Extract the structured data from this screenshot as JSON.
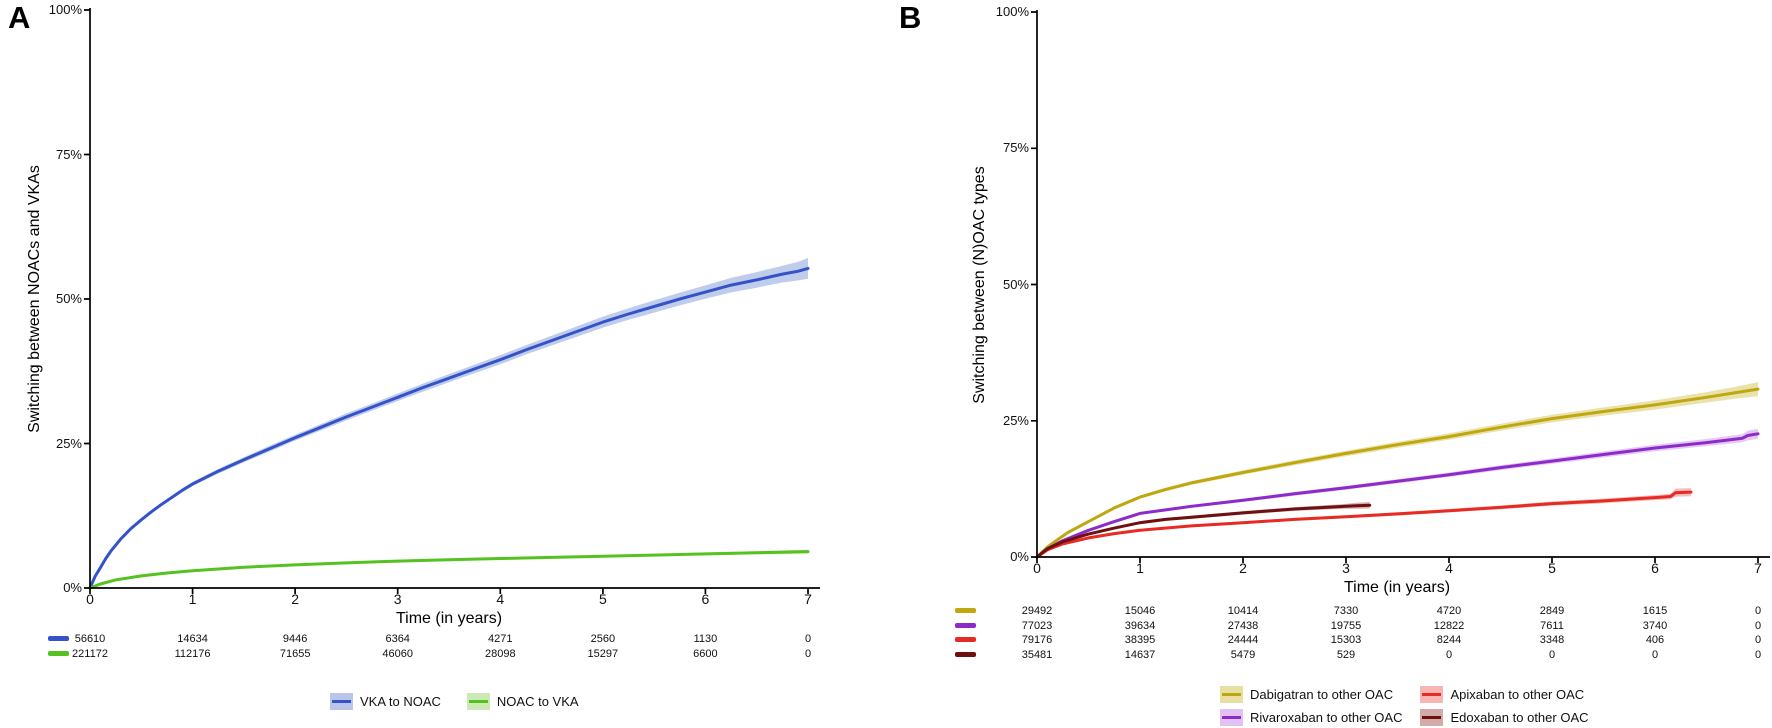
{
  "figure": {
    "background": "#ffffff",
    "axis_color": "#000000"
  },
  "panels": [
    {
      "label": "A",
      "y_axis_title": "Switching between NOACs and VKAs",
      "x_axis_title": "Time (in years)",
      "y_tick_labels": [
        "0%",
        "25%",
        "50%",
        "75%",
        "100%"
      ],
      "x_tick_labels": [
        "0",
        "1",
        "2",
        "3",
        "4",
        "5",
        "6",
        "7"
      ],
      "legend": [
        {
          "label": "VKA to NOAC",
          "line_color": "#3453c8",
          "fill_color": "#b9c6ea"
        },
        {
          "label": "NOAC to VKA",
          "line_color": "#55c221",
          "fill_color": "#cde9b5"
        }
      ],
      "risk_table": [
        {
          "series": "VKA to NOAC",
          "color": "#3453c8",
          "counts": [
            "56610",
            "14634",
            "9446",
            "6364",
            "4271",
            "2560",
            "1130",
            "0"
          ]
        },
        {
          "series": "NOAC to VKA",
          "color": "#55c221",
          "counts": [
            "221172",
            "112176",
            "71655",
            "46060",
            "28098",
            "15297",
            "6600",
            "0"
          ]
        }
      ]
    },
    {
      "label": "B",
      "y_axis_title": "Switching between (N)OAC types",
      "x_axis_title": "Time (in years)",
      "y_tick_labels": [
        "0%",
        "25%",
        "50%",
        "75%",
        "100%"
      ],
      "x_tick_labels": [
        "0",
        "1",
        "2",
        "3",
        "4",
        "5",
        "6",
        "7"
      ],
      "legend": [
        {
          "label": "Dabigatran to other OAC",
          "line_color": "#bfa70f",
          "fill_color": "#e8dfa2"
        },
        {
          "label": "Rivaroxaban to other OAC",
          "line_color": "#8d2bc9",
          "fill_color": "#e2c2f2"
        },
        {
          "label": "Apixaban to other OAC",
          "line_color": "#e62a24",
          "fill_color": "#f6b6b3"
        },
        {
          "label": "Edoxaban to other OAC",
          "line_color": "#6e1012",
          "fill_color": "#d2aaa8"
        }
      ],
      "risk_table": [
        {
          "series": "Dabigatran to other OAC",
          "color": "#bfa70f",
          "counts": [
            "29492",
            "15046",
            "10414",
            "7330",
            "4720",
            "2849",
            "1615",
            "0"
          ]
        },
        {
          "series": "Rivaroxaban to other OAC",
          "color": "#8d2bc9",
          "counts": [
            "77023",
            "39634",
            "27438",
            "19755",
            "12822",
            "7611",
            "3740",
            "0"
          ]
        },
        {
          "series": "Apixaban to other OAC",
          "color": "#e62a24",
          "counts": [
            "79176",
            "38395",
            "24444",
            "15303",
            "8244",
            "3348",
            "406",
            "0"
          ]
        },
        {
          "series": "Edoxaban to other OAC",
          "color": "#6e1012",
          "counts": [
            "35481",
            "14637",
            "5479",
            "529",
            "0",
            "0",
            "0",
            "0"
          ]
        }
      ]
    }
  ],
  "chart_data": [
    {
      "type": "line",
      "title": "Panel A: switching between NOACs and VKAs, cumulative incidence with 95% CI bands",
      "xlabel": "Time (in years)",
      "ylabel": "Switching between NOACs and VKAs",
      "xlim": [
        0,
        7
      ],
      "ylim_pct": [
        0,
        100
      ],
      "x_ticks": [
        0,
        1,
        2,
        3,
        4,
        5,
        6,
        7
      ],
      "y_ticks_pct": [
        0,
        25,
        50,
        75,
        100
      ],
      "grid": false,
      "legend_position": "bottom-center",
      "series": [
        {
          "name": "VKA to NOAC",
          "color": "#3453c8",
          "band_color": "#b9c6ea",
          "points_t_pct_halfCI": [
            [
              0,
              0,
              0.1
            ],
            [
              0.05,
              2,
              0.15
            ],
            [
              0.1,
              3.5,
              0.15
            ],
            [
              0.15,
              5,
              0.15
            ],
            [
              0.2,
              6.3,
              0.2
            ],
            [
              0.3,
              8.5,
              0.2
            ],
            [
              0.4,
              10.3,
              0.25
            ],
            [
              0.5,
              11.8,
              0.25
            ],
            [
              0.6,
              13.2,
              0.3
            ],
            [
              0.7,
              14.5,
              0.3
            ],
            [
              0.8,
              15.7,
              0.3
            ],
            [
              0.9,
              16.9,
              0.35
            ],
            [
              1,
              18,
              0.35
            ],
            [
              1.25,
              20.2,
              0.4
            ],
            [
              1.5,
              22.2,
              0.45
            ],
            [
              1.75,
              24.1,
              0.5
            ],
            [
              2,
              26,
              0.5
            ],
            [
              2.25,
              27.8,
              0.55
            ],
            [
              2.5,
              29.6,
              0.6
            ],
            [
              2.75,
              31.3,
              0.6
            ],
            [
              3,
              33,
              0.65
            ],
            [
              3.25,
              34.7,
              0.7
            ],
            [
              3.5,
              36.3,
              0.7
            ],
            [
              3.75,
              37.9,
              0.75
            ],
            [
              4,
              39.5,
              0.8
            ],
            [
              4.25,
              41.2,
              0.8
            ],
            [
              4.5,
              42.8,
              0.85
            ],
            [
              4.75,
              44.4,
              0.9
            ],
            [
              5,
              46,
              0.95
            ],
            [
              5.25,
              47.4,
              1.0
            ],
            [
              5.5,
              48.7,
              1.05
            ],
            [
              5.75,
              50,
              1.1
            ],
            [
              6,
              51.2,
              1.15
            ],
            [
              6.25,
              52.4,
              1.25
            ],
            [
              6.5,
              53.3,
              1.35
            ],
            [
              6.75,
              54.3,
              1.45
            ],
            [
              6.9,
              54.8,
              1.6
            ],
            [
              7,
              55.3,
              1.8
            ]
          ]
        },
        {
          "name": "NOAC to VKA",
          "color": "#55c221",
          "band_color": "#cde9b5",
          "points_t_pct_halfCI": [
            [
              0,
              0,
              0.05
            ],
            [
              0.1,
              0.7,
              0.08
            ],
            [
              0.25,
              1.4,
              0.08
            ],
            [
              0.5,
              2.1,
              0.1
            ],
            [
              0.75,
              2.6,
              0.1
            ],
            [
              1,
              3,
              0.1
            ],
            [
              1.5,
              3.6,
              0.12
            ],
            [
              2,
              4,
              0.12
            ],
            [
              2.5,
              4.35,
              0.14
            ],
            [
              3,
              4.65,
              0.15
            ],
            [
              3.5,
              4.9,
              0.16
            ],
            [
              4,
              5.1,
              0.17
            ],
            [
              4.5,
              5.3,
              0.18
            ],
            [
              5,
              5.5,
              0.2
            ],
            [
              5.5,
              5.7,
              0.22
            ],
            [
              6,
              5.9,
              0.25
            ],
            [
              6.5,
              6.1,
              0.28
            ],
            [
              7,
              6.3,
              0.35
            ]
          ]
        }
      ]
    },
    {
      "type": "line",
      "title": "Panel B: switching between (N)OAC types, cumulative incidence with 95% CI bands",
      "xlabel": "Time (in years)",
      "ylabel": "Switching between (N)OAC types",
      "xlim": [
        0,
        7
      ],
      "ylim_pct": [
        0,
        100
      ],
      "x_ticks": [
        0,
        1,
        2,
        3,
        4,
        5,
        6,
        7
      ],
      "y_ticks_pct": [
        0,
        25,
        50,
        75,
        100
      ],
      "grid": false,
      "legend_position": "bottom-center",
      "series": [
        {
          "name": "Dabigatran to other OAC",
          "color": "#bfa70f",
          "band_color": "#e8dfa2",
          "points_t_pct_halfCI": [
            [
              0,
              0,
              0.1
            ],
            [
              0.1,
              1.8,
              0.15
            ],
            [
              0.2,
              3.2,
              0.2
            ],
            [
              0.3,
              4.5,
              0.2
            ],
            [
              0.5,
              6.5,
              0.25
            ],
            [
              0.75,
              9,
              0.3
            ],
            [
              1,
              11,
              0.3
            ],
            [
              1.25,
              12.4,
              0.35
            ],
            [
              1.5,
              13.6,
              0.35
            ],
            [
              2,
              15.5,
              0.4
            ],
            [
              2.5,
              17.3,
              0.45
            ],
            [
              3,
              19,
              0.5
            ],
            [
              3.5,
              20.6,
              0.55
            ],
            [
              4,
              22.1,
              0.6
            ],
            [
              4.5,
              23.8,
              0.65
            ],
            [
              5,
              25.4,
              0.7
            ],
            [
              5.5,
              26.7,
              0.75
            ],
            [
              6,
              27.9,
              0.85
            ],
            [
              6.5,
              29.3,
              0.95
            ],
            [
              6.8,
              30.2,
              1.1
            ],
            [
              7,
              30.8,
              1.3
            ]
          ]
        },
        {
          "name": "Rivaroxaban to other OAC",
          "color": "#8d2bc9",
          "band_color": "#e2c2f2",
          "points_t_pct_halfCI": [
            [
              0,
              0,
              0.1
            ],
            [
              0.1,
              1.5,
              0.15
            ],
            [
              0.25,
              3,
              0.15
            ],
            [
              0.5,
              4.9,
              0.2
            ],
            [
              0.75,
              6.5,
              0.2
            ],
            [
              1,
              8,
              0.25
            ],
            [
              1.5,
              9.3,
              0.3
            ],
            [
              2,
              10.4,
              0.3
            ],
            [
              2.5,
              11.6,
              0.35
            ],
            [
              3,
              12.7,
              0.35
            ],
            [
              3.5,
              13.9,
              0.4
            ],
            [
              4,
              15.1,
              0.4
            ],
            [
              4.5,
              16.4,
              0.45
            ],
            [
              5,
              17.6,
              0.5
            ],
            [
              5.5,
              18.8,
              0.55
            ],
            [
              6,
              20,
              0.6
            ],
            [
              6.5,
              21,
              0.65
            ],
            [
              6.85,
              21.8,
              0.75
            ],
            [
              6.9,
              22.3,
              0.9
            ],
            [
              7,
              22.6,
              0.9
            ]
          ]
        },
        {
          "name": "Apixaban to other OAC",
          "color": "#e62a24",
          "band_color": "#f6b6b3",
          "points_t_pct_halfCI": [
            [
              0,
              0,
              0.1
            ],
            [
              0.1,
              1.3,
              0.12
            ],
            [
              0.25,
              2.4,
              0.15
            ],
            [
              0.5,
              3.5,
              0.15
            ],
            [
              0.75,
              4.3,
              0.18
            ],
            [
              1,
              4.9,
              0.2
            ],
            [
              1.5,
              5.7,
              0.22
            ],
            [
              2,
              6.3,
              0.25
            ],
            [
              2.5,
              6.9,
              0.25
            ],
            [
              3,
              7.4,
              0.28
            ],
            [
              3.5,
              7.9,
              0.3
            ],
            [
              4,
              8.5,
              0.32
            ],
            [
              4.5,
              9.1,
              0.35
            ],
            [
              5,
              9.8,
              0.38
            ],
            [
              5.5,
              10.3,
              0.42
            ],
            [
              6,
              10.9,
              0.48
            ],
            [
              6.15,
              11.1,
              0.5
            ],
            [
              6.2,
              11.8,
              0.75
            ],
            [
              6.35,
              11.9,
              0.75
            ]
          ]
        },
        {
          "name": "Edoxaban to other OAC",
          "color": "#6e1012",
          "band_color": "#d2aaa8",
          "points_t_pct_halfCI": [
            [
              0,
              0,
              0.1
            ],
            [
              0.1,
              1.5,
              0.15
            ],
            [
              0.25,
              2.8,
              0.18
            ],
            [
              0.5,
              4.2,
              0.2
            ],
            [
              0.75,
              5.3,
              0.22
            ],
            [
              1,
              6.3,
              0.25
            ],
            [
              1.25,
              6.9,
              0.28
            ],
            [
              1.5,
              7.3,
              0.3
            ],
            [
              2,
              8.1,
              0.32
            ],
            [
              2.5,
              8.8,
              0.35
            ],
            [
              3,
              9.3,
              0.45
            ],
            [
              3.1,
              9.4,
              0.55
            ],
            [
              3.23,
              9.5,
              0.6
            ]
          ]
        }
      ]
    }
  ]
}
